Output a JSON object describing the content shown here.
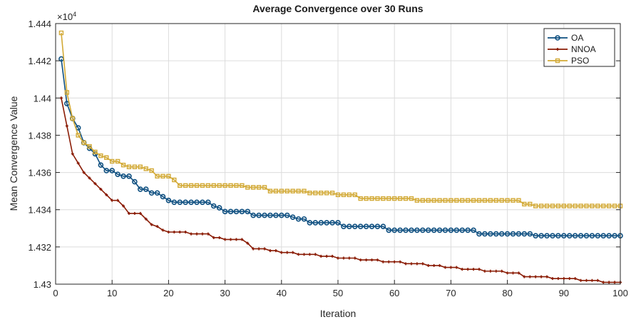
{
  "chart_data": {
    "type": "line",
    "title": "Average Convergence over 30 Runs",
    "xlabel": "Iteration",
    "ylabel": "Mean Convergence Value",
    "y_multiplier": "×10^4",
    "xlim": [
      0,
      100
    ],
    "ylim": [
      1.43,
      1.444
    ],
    "xticks": [
      "0",
      "10",
      "20",
      "30",
      "40",
      "50",
      "60",
      "70",
      "80",
      "90",
      "100"
    ],
    "yticks": [
      "1.43",
      "1.432",
      "1.434",
      "1.436",
      "1.438",
      "1.44",
      "1.442",
      "1.444"
    ],
    "grid": true,
    "legend_position": "top-right",
    "x_start": 1,
    "series": [
      {
        "name": "OA",
        "color": "#0e4f80",
        "marker": "circle",
        "values": [
          1.4421,
          1.4397,
          1.4389,
          1.4384,
          1.4376,
          1.4373,
          1.437,
          1.4364,
          1.4361,
          1.4361,
          1.4359,
          1.4358,
          1.4358,
          1.4355,
          1.4351,
          1.4351,
          1.4349,
          1.4349,
          1.4347,
          1.4345,
          1.4344,
          1.4344,
          1.4344,
          1.4344,
          1.4344,
          1.4344,
          1.4344,
          1.4342,
          1.4341,
          1.4339,
          1.4339,
          1.4339,
          1.4339,
          1.4339,
          1.4337,
          1.4337,
          1.4337,
          1.4337,
          1.4337,
          1.4337,
          1.4337,
          1.4336,
          1.4335,
          1.4335,
          1.4333,
          1.4333,
          1.4333,
          1.4333,
          1.4333,
          1.4333,
          1.4331,
          1.4331,
          1.4331,
          1.4331,
          1.4331,
          1.4331,
          1.4331,
          1.4331,
          1.4329,
          1.4329,
          1.4329,
          1.4329,
          1.4329,
          1.4329,
          1.4329,
          1.4329,
          1.4329,
          1.4329,
          1.4329,
          1.4329,
          1.4329,
          1.4329,
          1.4329,
          1.4329,
          1.4327,
          1.4327,
          1.4327,
          1.4327,
          1.4327,
          1.4327,
          1.4327,
          1.4327,
          1.4327,
          1.4327,
          1.4326,
          1.4326,
          1.4326,
          1.4326,
          1.4326,
          1.4326,
          1.4326,
          1.4326,
          1.4326,
          1.4326,
          1.4326,
          1.4326,
          1.4326,
          1.4326,
          1.4326,
          1.4326
        ]
      },
      {
        "name": "NNOA",
        "color": "#8a1c05",
        "marker": "plus",
        "values": [
          1.44,
          1.4385,
          1.437,
          1.4365,
          1.436,
          1.4357,
          1.4354,
          1.4351,
          1.4348,
          1.4345,
          1.4345,
          1.4342,
          1.4338,
          1.4338,
          1.4338,
          1.4335,
          1.4332,
          1.4331,
          1.4329,
          1.4328,
          1.4328,
          1.4328,
          1.4328,
          1.4327,
          1.4327,
          1.4327,
          1.4327,
          1.4325,
          1.4325,
          1.4324,
          1.4324,
          1.4324,
          1.4324,
          1.4322,
          1.4319,
          1.4319,
          1.4319,
          1.4318,
          1.4318,
          1.4317,
          1.4317,
          1.4317,
          1.4316,
          1.4316,
          1.4316,
          1.4316,
          1.4315,
          1.4315,
          1.4315,
          1.4314,
          1.4314,
          1.4314,
          1.4314,
          1.4313,
          1.4313,
          1.4313,
          1.4313,
          1.4312,
          1.4312,
          1.4312,
          1.4312,
          1.4311,
          1.4311,
          1.4311,
          1.4311,
          1.431,
          1.431,
          1.431,
          1.4309,
          1.4309,
          1.4309,
          1.4308,
          1.4308,
          1.4308,
          1.4308,
          1.4307,
          1.4307,
          1.4307,
          1.4307,
          1.4306,
          1.4306,
          1.4306,
          1.4304,
          1.4304,
          1.4304,
          1.4304,
          1.4304,
          1.4303,
          1.4303,
          1.4303,
          1.4303,
          1.4303,
          1.4302,
          1.4302,
          1.4302,
          1.4302,
          1.4301,
          1.4301,
          1.4301,
          1.4301
        ]
      },
      {
        "name": "PSO",
        "color": "#d2a935",
        "marker": "square",
        "values": [
          1.4435,
          1.4403,
          1.4389,
          1.438,
          1.4376,
          1.4374,
          1.4371,
          1.4369,
          1.4368,
          1.4366,
          1.4366,
          1.4364,
          1.4363,
          1.4363,
          1.4363,
          1.4362,
          1.4361,
          1.4358,
          1.4358,
          1.4358,
          1.4356,
          1.4353,
          1.4353,
          1.4353,
          1.4353,
          1.4353,
          1.4353,
          1.4353,
          1.4353,
          1.4353,
          1.4353,
          1.4353,
          1.4353,
          1.4352,
          1.4352,
          1.4352,
          1.4352,
          1.435,
          1.435,
          1.435,
          1.435,
          1.435,
          1.435,
          1.435,
          1.4349,
          1.4349,
          1.4349,
          1.4349,
          1.4349,
          1.4348,
          1.4348,
          1.4348,
          1.4348,
          1.4346,
          1.4346,
          1.4346,
          1.4346,
          1.4346,
          1.4346,
          1.4346,
          1.4346,
          1.4346,
          1.4346,
          1.4345,
          1.4345,
          1.4345,
          1.4345,
          1.4345,
          1.4345,
          1.4345,
          1.4345,
          1.4345,
          1.4345,
          1.4345,
          1.4345,
          1.4345,
          1.4345,
          1.4345,
          1.4345,
          1.4345,
          1.4345,
          1.4345,
          1.4343,
          1.4343,
          1.4342,
          1.4342,
          1.4342,
          1.4342,
          1.4342,
          1.4342,
          1.4342,
          1.4342,
          1.4342,
          1.4342,
          1.4342,
          1.4342,
          1.4342,
          1.4342,
          1.4342,
          1.4342
        ]
      }
    ]
  }
}
